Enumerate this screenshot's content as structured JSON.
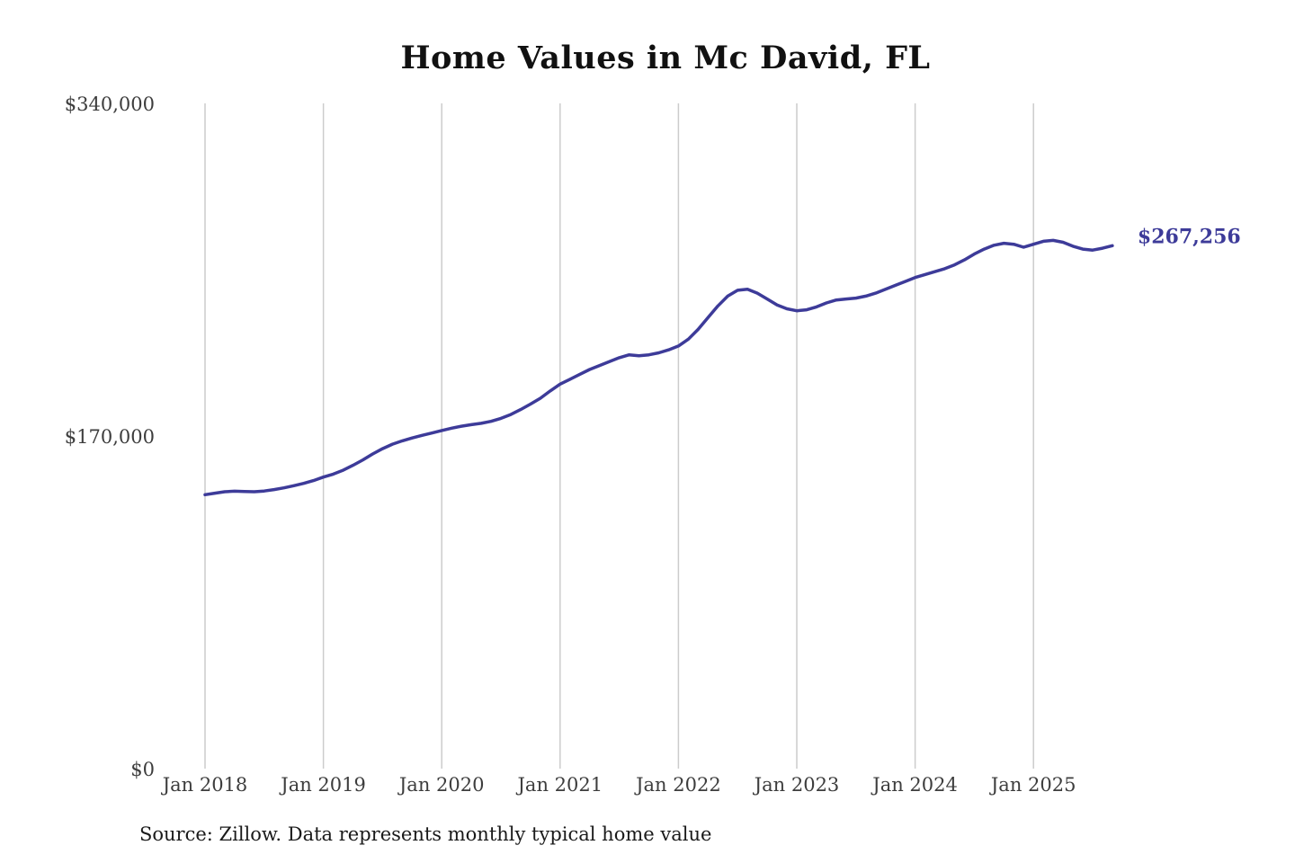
{
  "chart": {
    "title": "Home Values in Mc David, FL",
    "source": "Source: Zillow. Data represents monthly typical home value",
    "end_label": "$267,256",
    "line_color": "#3d3b99",
    "grid_color": "#cccccc",
    "tick_text_color": "#3d3d3d"
  },
  "chart_data": {
    "type": "line",
    "title": "Home Values in Mc David, FL",
    "series_name": "Typical home value ($)",
    "frequency": "monthly",
    "x_start": "Jan 2018",
    "x_end": "Sep 2025",
    "x_tick_labels": [
      "Jan 2018",
      "Jan 2019",
      "Jan 2020",
      "Jan 2021",
      "Jan 2022",
      "Jan 2023",
      "Jan 2024",
      "Jan 2025"
    ],
    "y_ticks": [
      {
        "label": "$340,000",
        "value": 340000
      },
      {
        "label": "$170,000",
        "value": 170000
      },
      {
        "label": "$0",
        "value": 0
      }
    ],
    "ylim": [
      0,
      340000
    ],
    "grid": "vertical-only",
    "legend": "none",
    "latest_value": 267256,
    "annotation": "$267,256",
    "values": [
      140000,
      140800,
      141500,
      141800,
      141600,
      141500,
      141900,
      142600,
      143500,
      144600,
      145800,
      147200,
      149000,
      150500,
      152500,
      155000,
      157800,
      160800,
      163500,
      165800,
      167500,
      169000,
      170300,
      171500,
      172800,
      174000,
      175000,
      175800,
      176500,
      177500,
      179000,
      181000,
      183500,
      186300,
      189300,
      193000,
      196500,
      199000,
      201500,
      204000,
      206000,
      208000,
      210000,
      211500,
      211000,
      211500,
      212500,
      214000,
      216000,
      219500,
      224500,
      230500,
      236500,
      241500,
      244500,
      245000,
      243000,
      240000,
      237000,
      235000,
      234000,
      234500,
      236000,
      238000,
      239500,
      240000,
      240500,
      241500,
      243000,
      245000,
      247000,
      249000,
      251000,
      252500,
      254000,
      255500,
      257500,
      260000,
      263000,
      265500,
      267500,
      268500,
      268000,
      266500,
      268000,
      269500,
      270000,
      269000,
      267000,
      265500,
      265000,
      266000,
      267256
    ]
  }
}
